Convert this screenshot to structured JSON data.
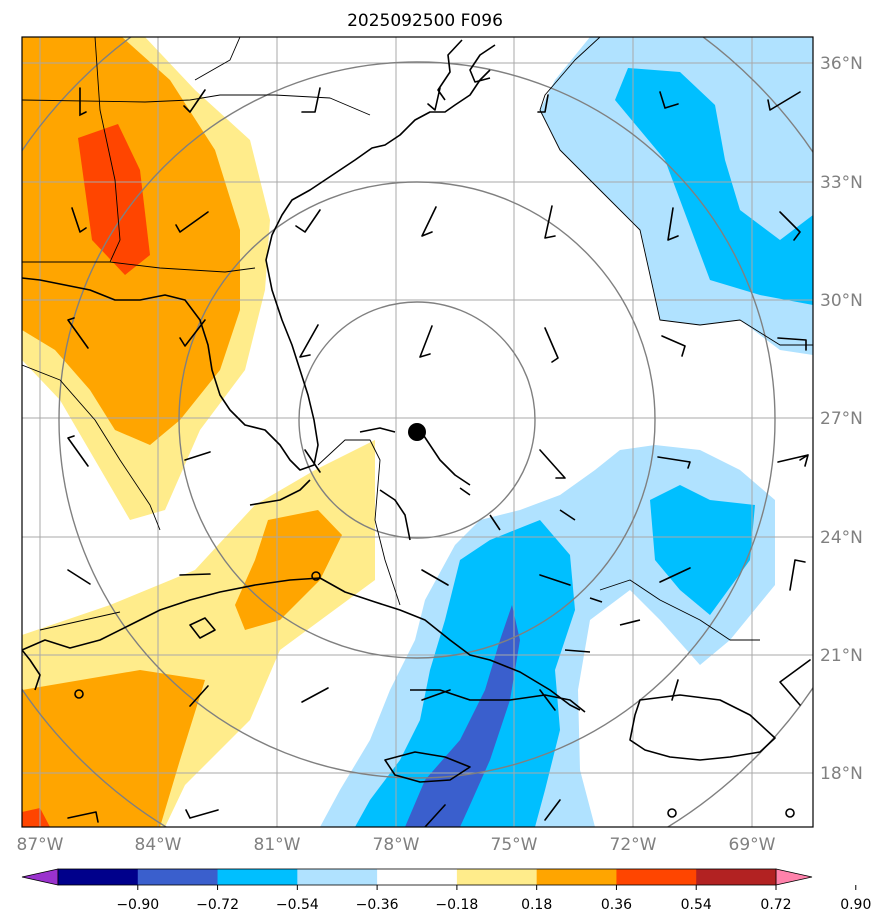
{
  "title": "2025092500 F096",
  "map": {
    "lon_labels": [
      "87°W",
      "84°W",
      "81°W",
      "78°W",
      "75°W",
      "72°W",
      "69°W"
    ],
    "lat_labels": [
      "36°N",
      "33°N",
      "30°N",
      "27°N",
      "24°N",
      "21°N",
      "18°N"
    ],
    "center_marker": "storm-center-dot"
  },
  "colorbar": {
    "ticks": [
      "−0.90",
      "−0.72",
      "−0.54",
      "−0.36",
      "−0.18",
      "0.18",
      "0.36",
      "0.54",
      "0.72",
      "0.90"
    ],
    "colors": [
      "#9a32cd",
      "#00008b",
      "#3a5fcd",
      "#00bfff",
      "#b0e2ff",
      "#ffffff",
      "#ffec8b",
      "#ffa500",
      "#ff4500",
      "#b22222",
      "#ff82ab"
    ]
  }
}
